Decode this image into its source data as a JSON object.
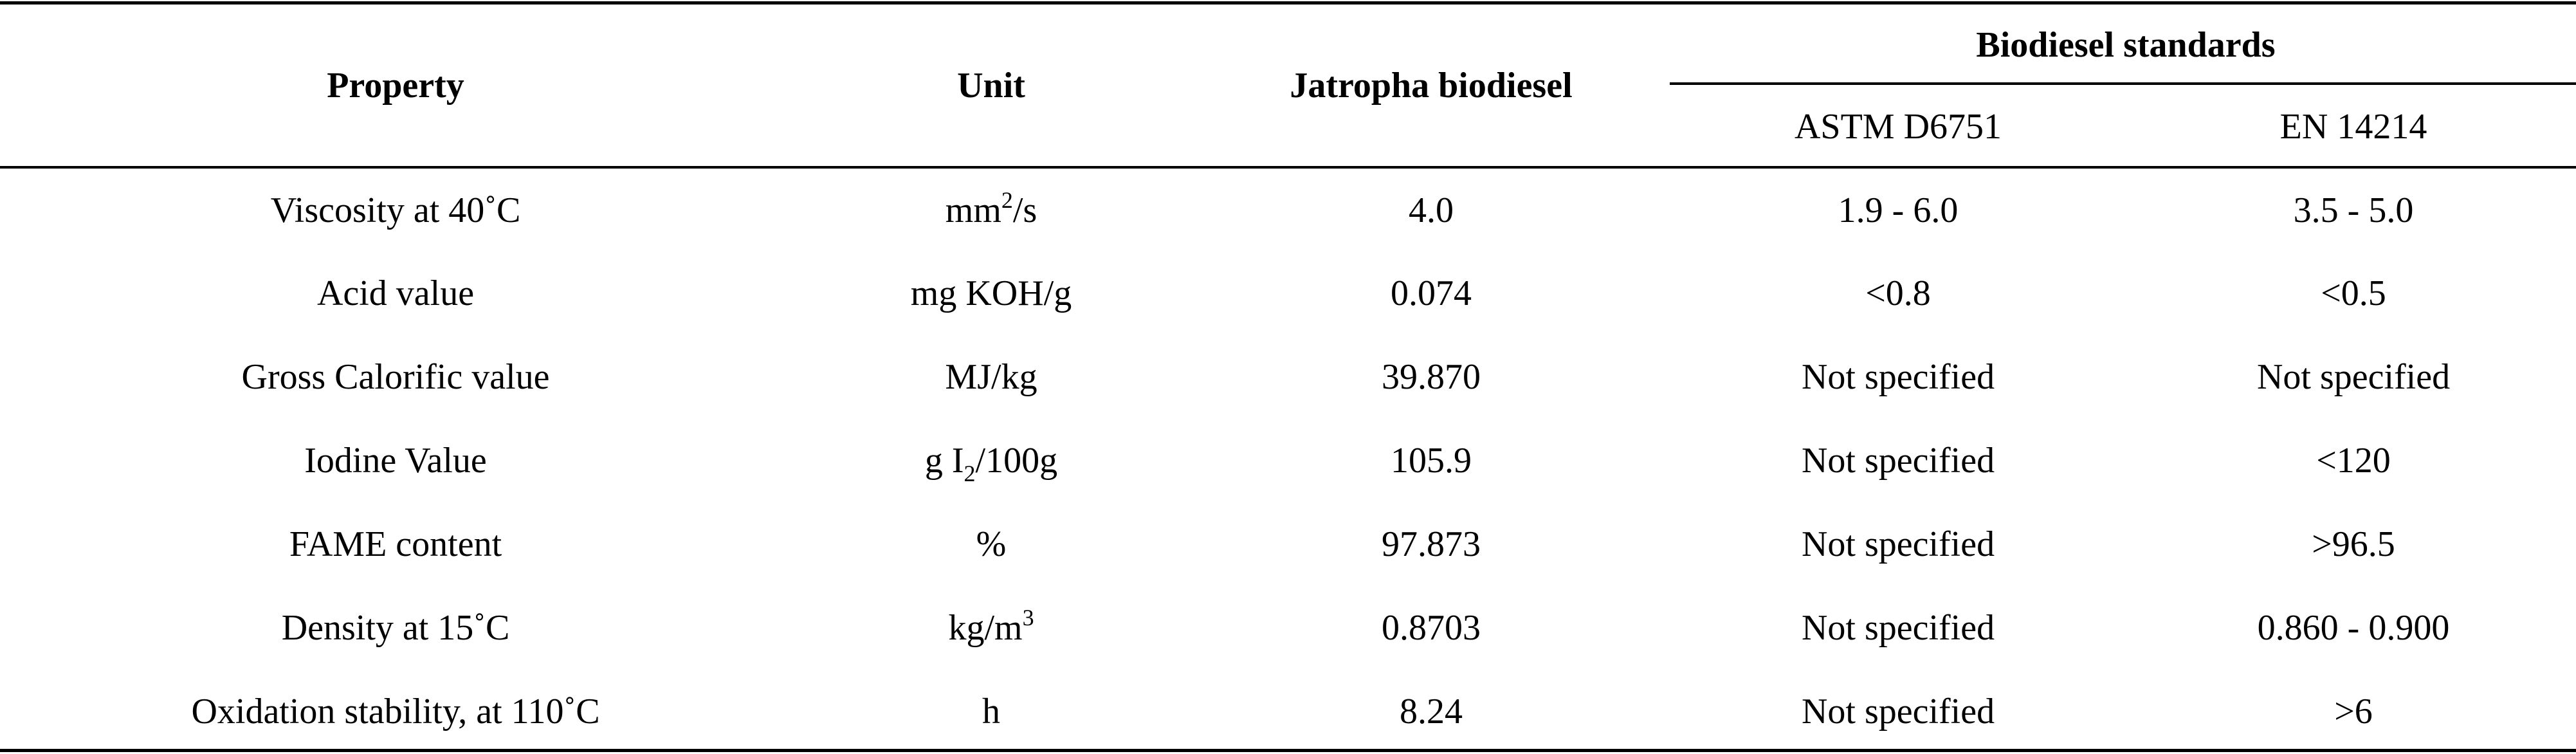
{
  "table": {
    "headers": {
      "property": "Property",
      "unit": "Unit",
      "jatropha": "Jatropha biodiesel",
      "standards_group": "Biodiesel standards",
      "astm": "ASTM D6751",
      "en": "EN 14214"
    },
    "rows": [
      {
        "property": "Viscosity at 40˚C",
        "unit_base": "mm",
        "unit_sup": "2",
        "unit_sub": "",
        "unit_tail": "/s",
        "jatropha": "4.0",
        "astm": "1.9 - 6.0",
        "en": "3.5 - 5.0"
      },
      {
        "property": "Acid value",
        "unit_base": "mg KOH/g",
        "unit_sup": "",
        "unit_sub": "",
        "unit_tail": "",
        "jatropha": "0.074",
        "astm": "<0.8",
        "en": "<0.5"
      },
      {
        "property": "Gross Calorific value",
        "unit_base": "MJ/kg",
        "unit_sup": "",
        "unit_sub": "",
        "unit_tail": "",
        "jatropha": "39.870",
        "astm": "Not specified",
        "en": "Not specified"
      },
      {
        "property": "Iodine Value",
        "unit_base": "g I",
        "unit_sup": "",
        "unit_sub": "2",
        "unit_tail": "/100g",
        "jatropha": "105.9",
        "astm": "Not specified",
        "en": "<120"
      },
      {
        "property": "FAME content",
        "unit_base": "%",
        "unit_sup": "",
        "unit_sub": "",
        "unit_tail": "",
        "jatropha": "97.873",
        "astm": "Not specified",
        "en": ">96.5"
      },
      {
        "property": "Density at 15˚C",
        "unit_base": "kg/m",
        "unit_sup": "3",
        "unit_sub": "",
        "unit_tail": "",
        "jatropha": "0.8703",
        "astm": "Not specified",
        "en": "0.860 - 0.900"
      },
      {
        "property": "Oxidation stability, at 110˚C",
        "unit_base": "h",
        "unit_sup": "",
        "unit_sub": "",
        "unit_tail": "",
        "jatropha": "8.24",
        "astm": "Not specified",
        "en": ">6"
      }
    ]
  }
}
